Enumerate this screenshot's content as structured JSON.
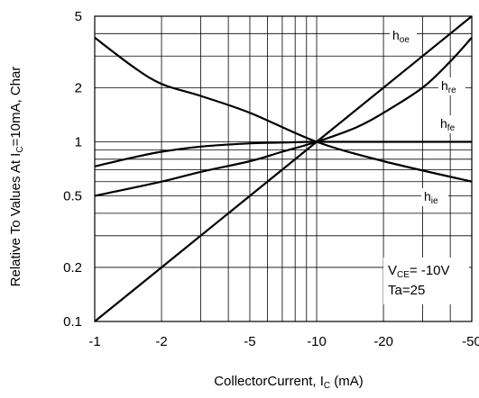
{
  "chart_data": {
    "type": "line",
    "xscale": "log",
    "yscale": "log",
    "xlim": [
      1,
      50
    ],
    "ylim": [
      0.1,
      5
    ],
    "grid": true,
    "xlabel": {
      "main": "Collector",
      "rest": "Current, I",
      "sub": "C",
      "unit": " (mA)"
    },
    "ylabel": {
      "pre": "Relative To Values At I",
      "sub": "C",
      "post": "=10mA, Char"
    },
    "x_ticks": [
      {
        "value": 1,
        "label": "-1"
      },
      {
        "value": 2,
        "label": "-2"
      },
      {
        "value": 5,
        "label": "-5"
      },
      {
        "value": 10,
        "label": "-10"
      },
      {
        "value": 20,
        "label": "-20"
      },
      {
        "value": 50,
        "label": "-50"
      }
    ],
    "y_ticks": [
      {
        "value": 0.1,
        "label": "0.1"
      },
      {
        "value": 0.2,
        "label": "0.2"
      },
      {
        "value": 0.5,
        "label": "0.5"
      },
      {
        "value": 1,
        "label": "1"
      },
      {
        "value": 2,
        "label": "2"
      },
      {
        "value": 5,
        "label": "5"
      }
    ],
    "x_grid": [
      1,
      2,
      3,
      4,
      5,
      6,
      7,
      8,
      9,
      10,
      20,
      30,
      40,
      50
    ],
    "y_grid": [
      0.1,
      0.2,
      0.3,
      0.4,
      0.5,
      0.6,
      0.7,
      0.8,
      0.9,
      1,
      2,
      3,
      4,
      5
    ],
    "series": [
      {
        "name": "h",
        "sub": "oe",
        "x": [
          1,
          10,
          50
        ],
        "y": [
          0.1,
          1,
          5
        ]
      },
      {
        "name": "h",
        "sub": "re",
        "x": [
          1,
          2,
          3,
          5,
          7,
          10,
          15,
          20,
          30,
          40,
          50
        ],
        "y": [
          0.5,
          0.6,
          0.68,
          0.78,
          0.88,
          1.0,
          1.2,
          1.45,
          2.0,
          2.8,
          3.8
        ]
      },
      {
        "name": "h",
        "sub": "fe",
        "x": [
          1,
          1.5,
          2,
          3,
          5,
          7,
          10,
          20,
          50
        ],
        "y": [
          0.73,
          0.82,
          0.88,
          0.94,
          0.98,
          0.99,
          1.0,
          1.0,
          1.0
        ]
      },
      {
        "name": "h",
        "sub": "ie",
        "x": [
          1,
          1.5,
          2,
          3,
          5,
          10,
          20,
          50
        ],
        "y": [
          3.8,
          2.6,
          2.1,
          1.8,
          1.45,
          1.0,
          0.78,
          0.6
        ]
      }
    ],
    "conditions": [
      {
        "pre": "V",
        "sub": "CE",
        "post": "= -10V"
      },
      {
        "pre": "Ta=25",
        "sub": "",
        "post": ""
      }
    ]
  }
}
